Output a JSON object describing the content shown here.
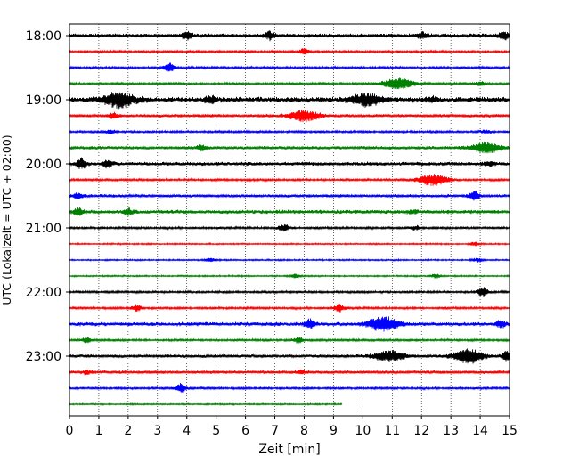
{
  "chart_data": {
    "type": "line",
    "xlabel": "Zeit  [min]",
    "ylabel": "UTC (Lokalzeit = UTC + 02:00)",
    "xlim": [
      0,
      15
    ],
    "x_ticks": [
      0,
      1,
      2,
      3,
      4,
      5,
      6,
      7,
      8,
      9,
      10,
      11,
      12,
      13,
      14,
      15
    ],
    "y_tick_labels": [
      "18:00",
      "19:00",
      "20:00",
      "21:00",
      "22:00",
      "23:00"
    ],
    "grid": "vertical-dotted",
    "trace_interval_minutes": 15,
    "trace_colors": [
      "#000000",
      "#ff0000",
      "#0000ff",
      "#008000"
    ],
    "traces": [
      {
        "start": "18:00",
        "color": "#000000",
        "end_min": 15,
        "base_amp": 2.5,
        "events": [
          [
            4.0,
            4
          ],
          [
            6.8,
            4
          ],
          [
            12,
            3
          ],
          [
            14.8,
            4
          ]
        ]
      },
      {
        "start": "18:15",
        "color": "#ff0000",
        "end_min": 15,
        "base_amp": 1.5,
        "events": [
          [
            8,
            3
          ]
        ]
      },
      {
        "start": "18:30",
        "color": "#0000ff",
        "end_min": 15,
        "base_amp": 1.5,
        "events": [
          [
            3.4,
            5
          ]
        ]
      },
      {
        "start": "18:45",
        "color": "#008000",
        "end_min": 15,
        "base_amp": 1.5,
        "events": [
          [
            11.2,
            6
          ],
          [
            14,
            2
          ]
        ]
      },
      {
        "start": "19:00",
        "color": "#000000",
        "end_min": 15,
        "base_amp": 3.5,
        "events": [
          [
            1.7,
            8
          ],
          [
            4.8,
            4
          ],
          [
            10.1,
            6
          ],
          [
            12.4,
            2
          ]
        ]
      },
      {
        "start": "19:15",
        "color": "#ff0000",
        "end_min": 15,
        "base_amp": 2.0,
        "events": [
          [
            1.5,
            3
          ],
          [
            8.0,
            6
          ]
        ]
      },
      {
        "start": "19:30",
        "color": "#0000ff",
        "end_min": 15,
        "base_amp": 1.5,
        "events": [
          [
            1.4,
            2
          ],
          [
            14.2,
            2
          ]
        ]
      },
      {
        "start": "19:45",
        "color": "#008000",
        "end_min": 15,
        "base_amp": 2.0,
        "events": [
          [
            4.5,
            3
          ],
          [
            14.2,
            6
          ]
        ]
      },
      {
        "start": "20:00",
        "color": "#000000",
        "end_min": 15,
        "base_amp": 2.5,
        "events": [
          [
            0.4,
            5
          ],
          [
            1.3,
            4
          ],
          [
            14.3,
            2
          ]
        ]
      },
      {
        "start": "20:15",
        "color": "#ff0000",
        "end_min": 15,
        "base_amp": 1.5,
        "events": [
          [
            12.4,
            6
          ]
        ]
      },
      {
        "start": "20:30",
        "color": "#0000ff",
        "end_min": 15,
        "base_amp": 2.0,
        "events": [
          [
            0.3,
            3
          ],
          [
            13.8,
            5
          ]
        ]
      },
      {
        "start": "20:45",
        "color": "#008000",
        "end_min": 15,
        "base_amp": 2.5,
        "events": [
          [
            0.3,
            4
          ],
          [
            2.0,
            3
          ],
          [
            11.7,
            2
          ]
        ]
      },
      {
        "start": "21:00",
        "color": "#000000",
        "end_min": 15,
        "base_amp": 1.5,
        "events": [
          [
            7.3,
            4
          ],
          [
            11.8,
            2
          ]
        ]
      },
      {
        "start": "21:15",
        "color": "#ff0000",
        "end_min": 15,
        "base_amp": 1.0,
        "events": [
          [
            13.8,
            2
          ]
        ]
      },
      {
        "start": "21:30",
        "color": "#0000ff",
        "end_min": 15,
        "base_amp": 1.0,
        "events": [
          [
            4.8,
            2
          ],
          [
            13.9,
            2
          ]
        ]
      },
      {
        "start": "21:45",
        "color": "#008000",
        "end_min": 15,
        "base_amp": 1.0,
        "events": [
          [
            7.7,
            2
          ],
          [
            12.5,
            2
          ]
        ]
      },
      {
        "start": "22:00",
        "color": "#000000",
        "end_min": 15,
        "base_amp": 1.5,
        "events": [
          [
            14.1,
            5
          ]
        ]
      },
      {
        "start": "22:15",
        "color": "#ff0000",
        "end_min": 15,
        "base_amp": 1.5,
        "events": [
          [
            2.3,
            3
          ],
          [
            9.2,
            4
          ]
        ]
      },
      {
        "start": "22:30",
        "color": "#0000ff",
        "end_min": 15,
        "base_amp": 2.5,
        "events": [
          [
            8.2,
            5
          ],
          [
            10.7,
            8
          ],
          [
            14.7,
            3
          ]
        ]
      },
      {
        "start": "22:45",
        "color": "#008000",
        "end_min": 15,
        "base_amp": 1.5,
        "events": [
          [
            0.6,
            3
          ],
          [
            7.8,
            3
          ]
        ]
      },
      {
        "start": "23:00",
        "color": "#000000",
        "end_min": 15,
        "base_amp": 2.0,
        "events": [
          [
            10.9,
            6
          ],
          [
            13.6,
            8
          ],
          [
            14.9,
            5
          ]
        ]
      },
      {
        "start": "23:15",
        "color": "#ff0000",
        "end_min": 15,
        "base_amp": 2.0,
        "events": [
          [
            0.6,
            2
          ],
          [
            7.9,
            2
          ]
        ]
      },
      {
        "start": "23:30",
        "color": "#0000ff",
        "end_min": 15,
        "base_amp": 1.5,
        "events": [
          [
            3.8,
            5
          ]
        ]
      },
      {
        "start": "23:45",
        "color": "#008000",
        "end_min": 9.3,
        "base_amp": 1.0,
        "events": []
      }
    ]
  }
}
